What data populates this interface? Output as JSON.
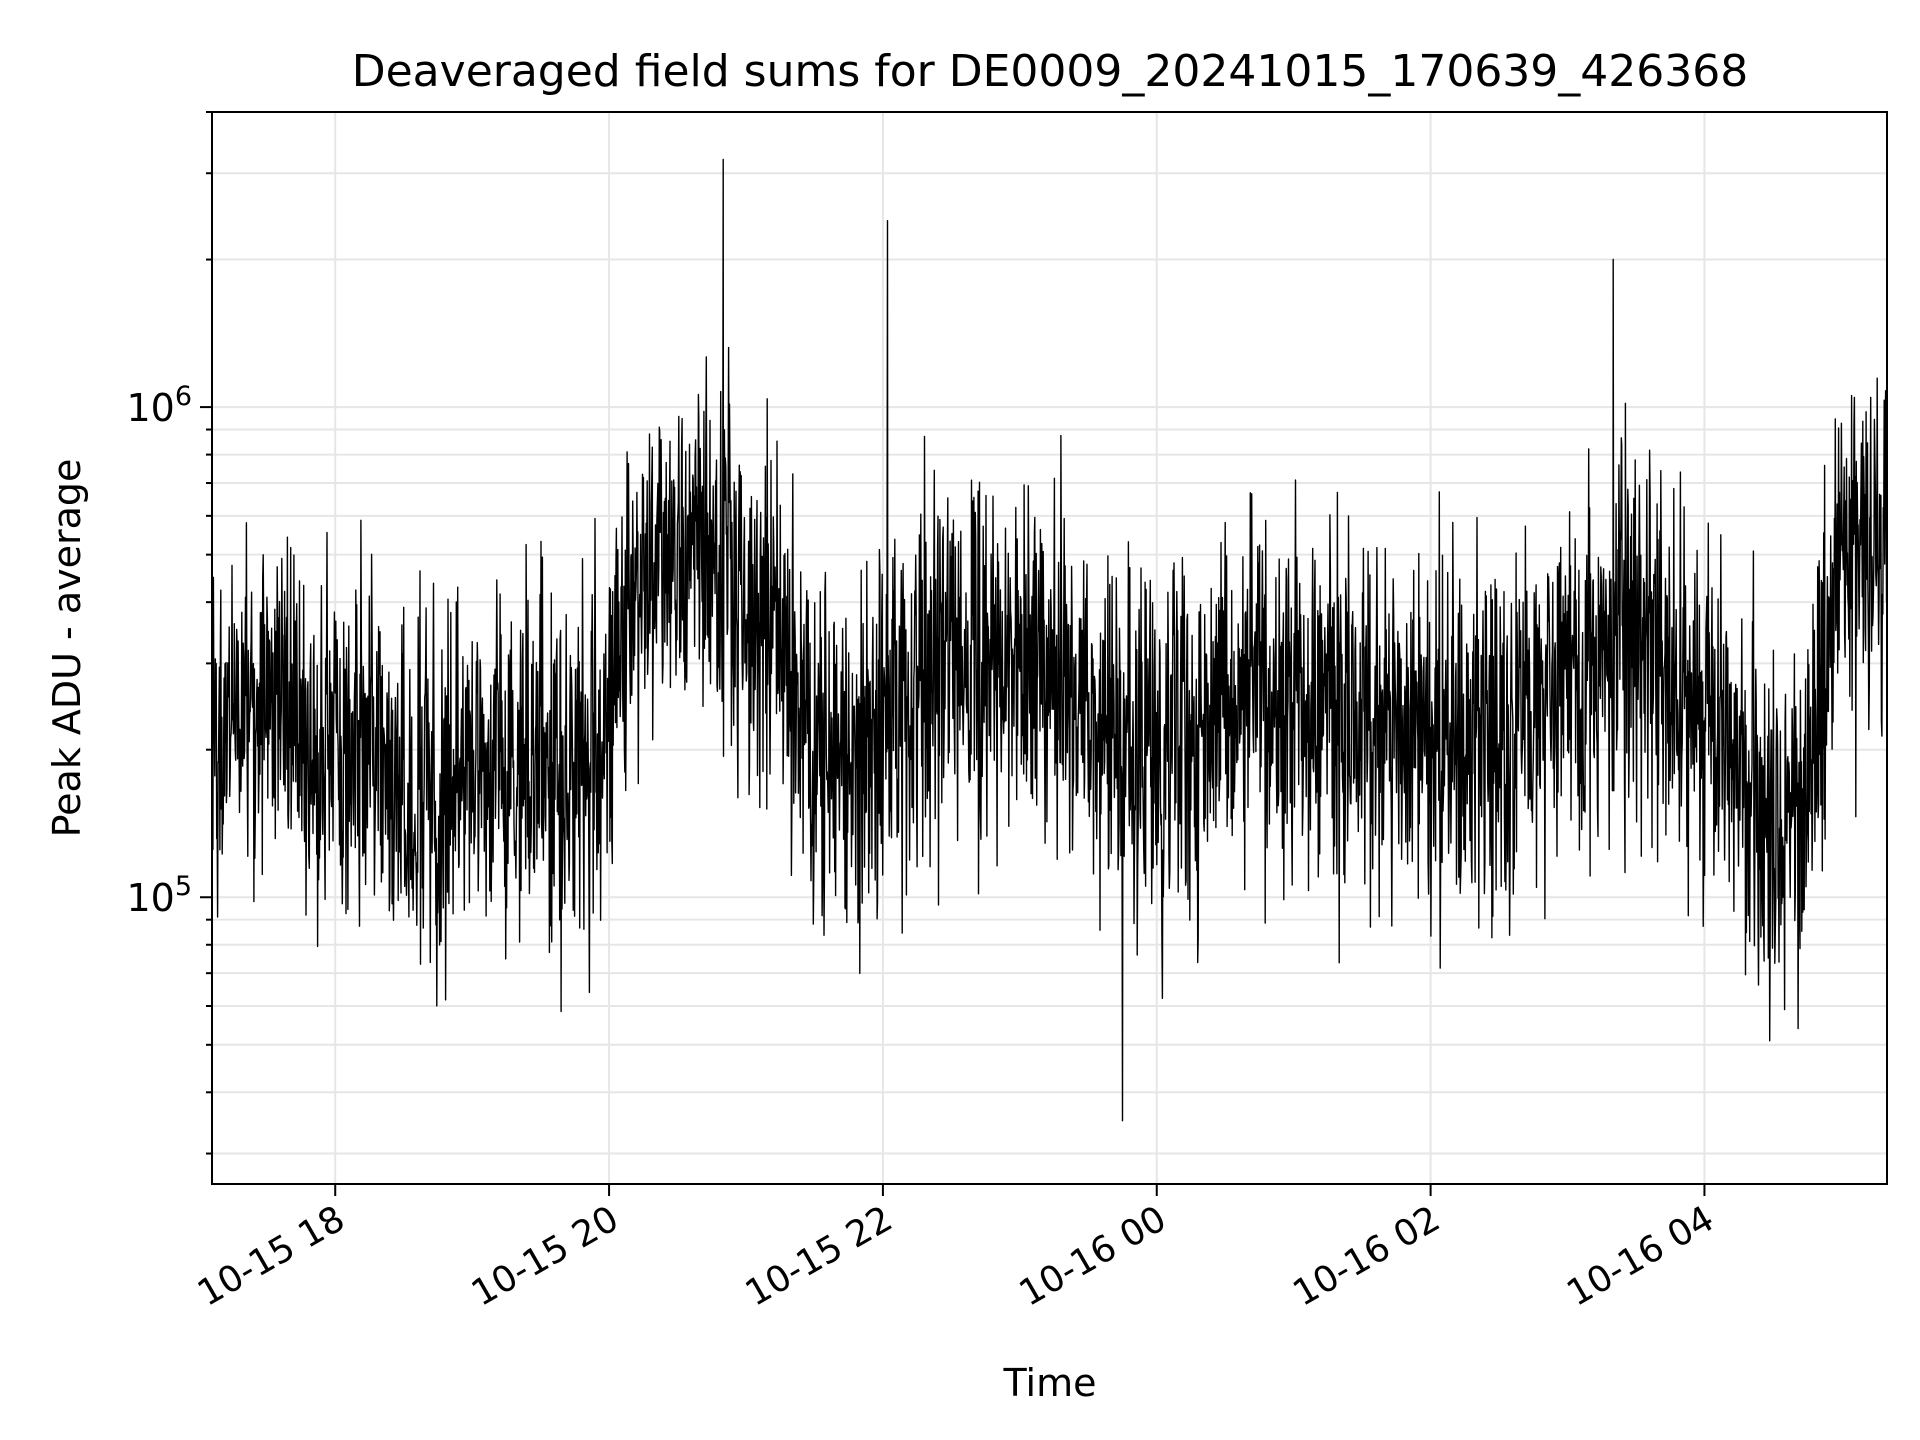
{
  "chart_data": {
    "type": "line",
    "title": "Deaveraged field sums for DE0009_20241015_170639_426368",
    "xlabel": "Time",
    "ylabel": "Peak ADU - average",
    "x_tick_labels": [
      "10-15 18",
      "10-15 20",
      "10-15 22",
      "10-16 00",
      "10-16 02",
      "10-16 04"
    ],
    "x_tick_times": [
      "2024-10-15 18:00",
      "2024-10-15 20:00",
      "2024-10-15 22:00",
      "2024-10-16 00:00",
      "2024-10-16 02:00",
      "2024-10-16 04:00"
    ],
    "xlim": [
      "2024-10-15 17:06",
      "2024-10-16 05:20"
    ],
    "y_tick_labels": [
      {
        "base": "10",
        "exp": "5",
        "value": 100000
      },
      {
        "base": "10",
        "exp": "6",
        "value": 1000000
      }
    ],
    "y_scale": "log",
    "ylim": [
      26000,
      4000000
    ],
    "grid": true,
    "line_color": "#000000",
    "series": [
      {
        "values": [
          {
            "x": "2024-10-15 17:06",
            "y": 230000
          },
          {
            "x": "2024-10-15 17:30",
            "y": 260000
          },
          {
            "x": "2024-10-15 18:00",
            "y": 190000
          },
          {
            "x": "2024-10-15 18:30",
            "y": 170000
          },
          {
            "x": "2024-10-15 19:00",
            "y": 185000
          },
          {
            "x": "2024-10-15 19:30",
            "y": 195000
          },
          {
            "x": "2024-10-15 19:55",
            "y": 180000
          },
          {
            "x": "2024-10-15 20:15",
            "y": 480000
          },
          {
            "x": "2024-10-15 20:45",
            "y": 520000
          },
          {
            "x": "2024-10-15 20:50",
            "y": 3200000
          },
          {
            "x": "2024-10-15 21:15",
            "y": 350000
          },
          {
            "x": "2024-10-15 21:30",
            "y": 180000
          },
          {
            "x": "2024-10-15 21:45",
            "y": 170000
          },
          {
            "x": "2024-10-15 22:02",
            "y": 2400000
          },
          {
            "x": "2024-10-15 22:30",
            "y": 330000
          },
          {
            "x": "2024-10-15 23:00",
            "y": 300000
          },
          {
            "x": "2024-10-15 23:30",
            "y": 230000
          },
          {
            "x": "2024-10-15 23:45",
            "y": 35000
          },
          {
            "x": "2024-10-16 00:00",
            "y": 190000
          },
          {
            "x": "2024-10-16 00:30",
            "y": 260000
          },
          {
            "x": "2024-10-16 01:00",
            "y": 260000
          },
          {
            "x": "2024-10-16 01:30",
            "y": 220000
          },
          {
            "x": "2024-10-16 02:00",
            "y": 210000
          },
          {
            "x": "2024-10-16 02:30",
            "y": 205000
          },
          {
            "x": "2024-10-16 03:00",
            "y": 250000
          },
          {
            "x": "2024-10-16 03:20",
            "y": 2000000
          },
          {
            "x": "2024-10-16 03:30",
            "y": 350000
          },
          {
            "x": "2024-10-16 04:00",
            "y": 220000
          },
          {
            "x": "2024-10-16 04:30",
            "y": 150000
          },
          {
            "x": "2024-10-16 04:45",
            "y": 160000
          },
          {
            "x": "2024-10-16 05:00",
            "y": 480000
          },
          {
            "x": "2024-10-16 05:20",
            "y": 550000
          }
        ]
      }
    ]
  }
}
